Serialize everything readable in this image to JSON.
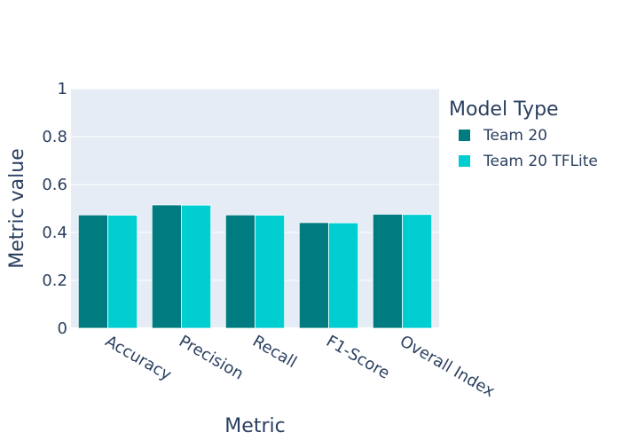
{
  "chart_data": {
    "type": "bar",
    "title": "",
    "xlabel": "Metric",
    "ylabel": "Metric value",
    "categories": [
      "Accuracy",
      "Precision",
      "Recall",
      "F1-Score",
      "Overall Index"
    ],
    "series": [
      {
        "name": "Team 20",
        "color": "#007C80",
        "values": [
          0.473,
          0.515,
          0.473,
          0.441,
          0.476
        ]
      },
      {
        "name": "Team 20 TFLite",
        "color": "#00CED1",
        "values": [
          0.472,
          0.514,
          0.472,
          0.44,
          0.475
        ]
      }
    ],
    "ylim": [
      0,
      1
    ],
    "yticks": [
      0,
      0.2,
      0.4,
      0.6,
      0.8,
      1
    ],
    "ytick_labels": [
      "0",
      "0.2",
      "0.4",
      "0.6",
      "0.8",
      "1"
    ],
    "legend": {
      "title": "Model Type",
      "position": "right"
    },
    "grid": true,
    "plot_background": "#E5ECF6",
    "gridline_color": "#ffffff"
  }
}
